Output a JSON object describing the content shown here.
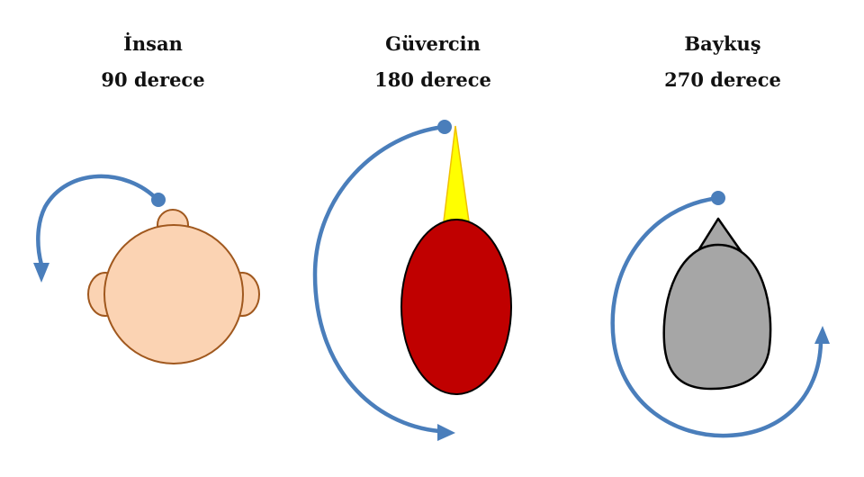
{
  "figures": [
    {
      "id": "human",
      "name": "İnsan",
      "degrees": "90 derece"
    },
    {
      "id": "pigeon",
      "name": "Güvercin",
      "degrees": "180 derece"
    },
    {
      "id": "owl",
      "name": "Baykuş",
      "degrees": "270 derece"
    }
  ],
  "colors": {
    "arrow": "#4a7ebb",
    "human_skin": "#fbd3b3",
    "human_outline": "#a0581e",
    "pigeon_body": "#c00000",
    "pigeon_beak": "#ffff00",
    "pigeon_beak_outline": "#f0c000",
    "owl_body": "#a6a6a6",
    "outline": "#000000"
  }
}
